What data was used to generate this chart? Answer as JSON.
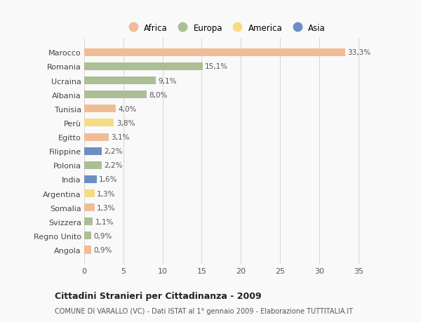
{
  "countries": [
    "Marocco",
    "Romania",
    "Ucraina",
    "Albania",
    "Tunisia",
    "Perù",
    "Egitto",
    "Filippine",
    "Polonia",
    "India",
    "Argentina",
    "Somalia",
    "Svizzera",
    "Regno Unito",
    "Angola"
  ],
  "values": [
    33.3,
    15.1,
    9.1,
    8.0,
    4.0,
    3.8,
    3.1,
    2.2,
    2.2,
    1.6,
    1.3,
    1.3,
    1.1,
    0.9,
    0.9
  ],
  "labels": [
    "33,3%",
    "15,1%",
    "9,1%",
    "8,0%",
    "4,0%",
    "3,8%",
    "3,1%",
    "2,2%",
    "2,2%",
    "1,6%",
    "1,3%",
    "1,3%",
    "1,1%",
    "0,9%",
    "0,9%"
  ],
  "continents": [
    "Africa",
    "Europa",
    "Europa",
    "Europa",
    "Africa",
    "America",
    "Africa",
    "Asia",
    "Europa",
    "Asia",
    "America",
    "Africa",
    "Europa",
    "Europa",
    "Africa"
  ],
  "colors": {
    "Africa": "#F0BC96",
    "Europa": "#ABBE96",
    "America": "#F5DC82",
    "Asia": "#6B8FC2"
  },
  "xlim": [
    0,
    36
  ],
  "xticks": [
    0,
    5,
    10,
    15,
    20,
    25,
    30,
    35
  ],
  "title": "Cittadini Stranieri per Cittadinanza - 2009",
  "subtitle": "COMUNE DI VARALLO (VC) - Dati ISTAT al 1° gennaio 2009 - Elaborazione TUTTITALIA.IT",
  "background_color": "#f9f9f9",
  "grid_color": "#d8d8d8",
  "bar_height": 0.55,
  "legend_order": [
    "Africa",
    "Europa",
    "America",
    "Asia"
  ]
}
